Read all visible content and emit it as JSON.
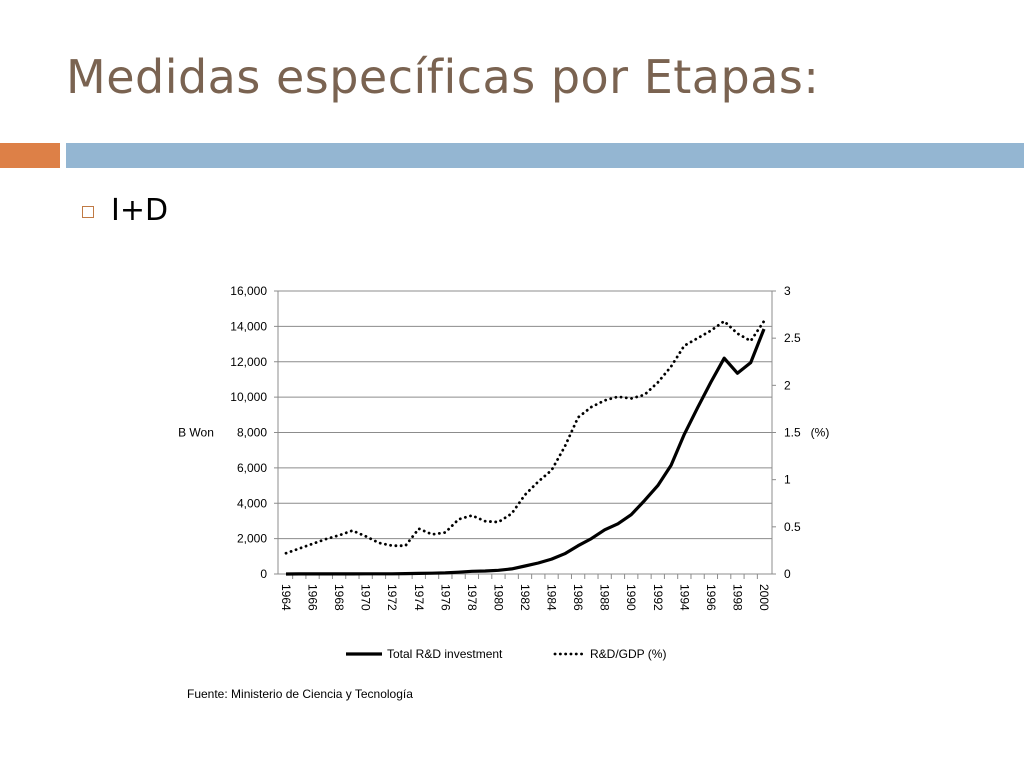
{
  "slide": {
    "title": "Medidas específicas por Etapas:",
    "bullet": "I+D",
    "source": "Fuente: Ministerio de Ciencia y Tecnología",
    "colors": {
      "title": "#7a6351",
      "accent_orange": "#dd8047",
      "accent_blue": "#94b6d2"
    }
  },
  "chart_data": {
    "type": "line",
    "x": [
      1964,
      1965,
      1966,
      1967,
      1968,
      1969,
      1970,
      1971,
      1972,
      1973,
      1974,
      1975,
      1976,
      1977,
      1978,
      1979,
      1980,
      1981,
      1982,
      1983,
      1984,
      1985,
      1986,
      1987,
      1988,
      1989,
      1990,
      1991,
      1992,
      1993,
      1994,
      1995,
      1996,
      1997,
      1998,
      1999,
      2000
    ],
    "xtick_labels": [
      "1964",
      "1966",
      "1968",
      "1970",
      "1972",
      "1974",
      "1976",
      "1978",
      "1980",
      "1982",
      "1984",
      "1986",
      "1988",
      "1990",
      "1992",
      "1994",
      "1996",
      "1998",
      "2000"
    ],
    "ylabel": "B Won",
    "ylim": [
      0,
      16000
    ],
    "yticks": [
      "0",
      "2,000",
      "4,000",
      "6,000",
      "8,000",
      "10,000",
      "12,000",
      "14,000",
      "16,000"
    ],
    "y2label": "(%)",
    "y2lim": [
      0,
      3
    ],
    "y2ticks": [
      "0",
      "0.5",
      "1",
      "1.5",
      "2",
      "2.5",
      "3"
    ],
    "grid": true,
    "legend_position": "bottom",
    "series": [
      {
        "name": "Total R&D investment",
        "axis": "left",
        "style": "solid",
        "values": [
          2,
          3,
          4,
          5,
          6,
          8,
          10,
          11,
          13,
          20,
          35,
          43,
          60,
          100,
          150,
          170,
          210,
          290,
          450,
          620,
          840,
          1150,
          1600,
          2000,
          2500,
          2840,
          3350,
          4150,
          5000,
          6150,
          7900,
          9400,
          10850,
          12200,
          11350,
          11950,
          13850
        ]
      },
      {
        "name": "R&D/GDP (%)",
        "axis": "right",
        "style": "dotted",
        "values": [
          0.22,
          0.27,
          0.32,
          0.37,
          0.41,
          0.46,
          0.4,
          0.33,
          0.3,
          0.3,
          0.48,
          0.42,
          0.44,
          0.58,
          0.62,
          0.56,
          0.55,
          0.64,
          0.84,
          0.98,
          1.1,
          1.35,
          1.66,
          1.77,
          1.84,
          1.88,
          1.86,
          1.9,
          2.03,
          2.2,
          2.42,
          2.5,
          2.58,
          2.68,
          2.55,
          2.47,
          2.68
        ]
      }
    ]
  }
}
